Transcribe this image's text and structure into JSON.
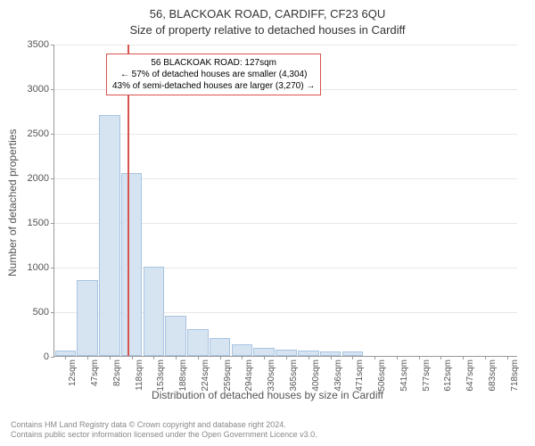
{
  "title_main": "56, BLACKOAK ROAD, CARDIFF, CF23 6QU",
  "title_sub": "Size of property relative to detached houses in Cardiff",
  "y_axis_label": "Number of detached properties",
  "x_axis_label": "Distribution of detached houses by size in Cardiff",
  "chart": {
    "type": "histogram",
    "ylim": [
      0,
      3500
    ],
    "ytick_step": 500,
    "yticks": [
      0,
      500,
      1000,
      1500,
      2000,
      2500,
      3000,
      3500
    ],
    "x_categories": [
      "12sqm",
      "47sqm",
      "82sqm",
      "118sqm",
      "153sqm",
      "188sqm",
      "224sqm",
      "259sqm",
      "294sqm",
      "330sqm",
      "365sqm",
      "400sqm",
      "436sqm",
      "471sqm",
      "506sqm",
      "541sqm",
      "577sqm",
      "612sqm",
      "647sqm",
      "683sqm",
      "718sqm"
    ],
    "values": [
      60,
      850,
      2700,
      2050,
      1000,
      450,
      300,
      200,
      130,
      90,
      70,
      60,
      50,
      50,
      0,
      0,
      0,
      0,
      0,
      0,
      0
    ],
    "bar_fill": "#d6e4f2",
    "bar_border": "#a8c3e0",
    "grid_color": "#e8e8e8",
    "axis_color": "#999999",
    "background_color": "#ffffff",
    "marker": {
      "position_index": 3.3,
      "color": "#d9534f"
    },
    "annotation": {
      "border_color": "#d9534f",
      "lines": [
        "56 BLACKOAK ROAD: 127sqm",
        "← 57% of detached houses are smaller (4,304)",
        "43% of semi-detached houses are larger (3,270) →"
      ]
    }
  },
  "footer": {
    "line1": "Contains HM Land Registry data © Crown copyright and database right 2024.",
    "line2": "Contains public sector information licensed under the Open Government Licence v3.0."
  }
}
